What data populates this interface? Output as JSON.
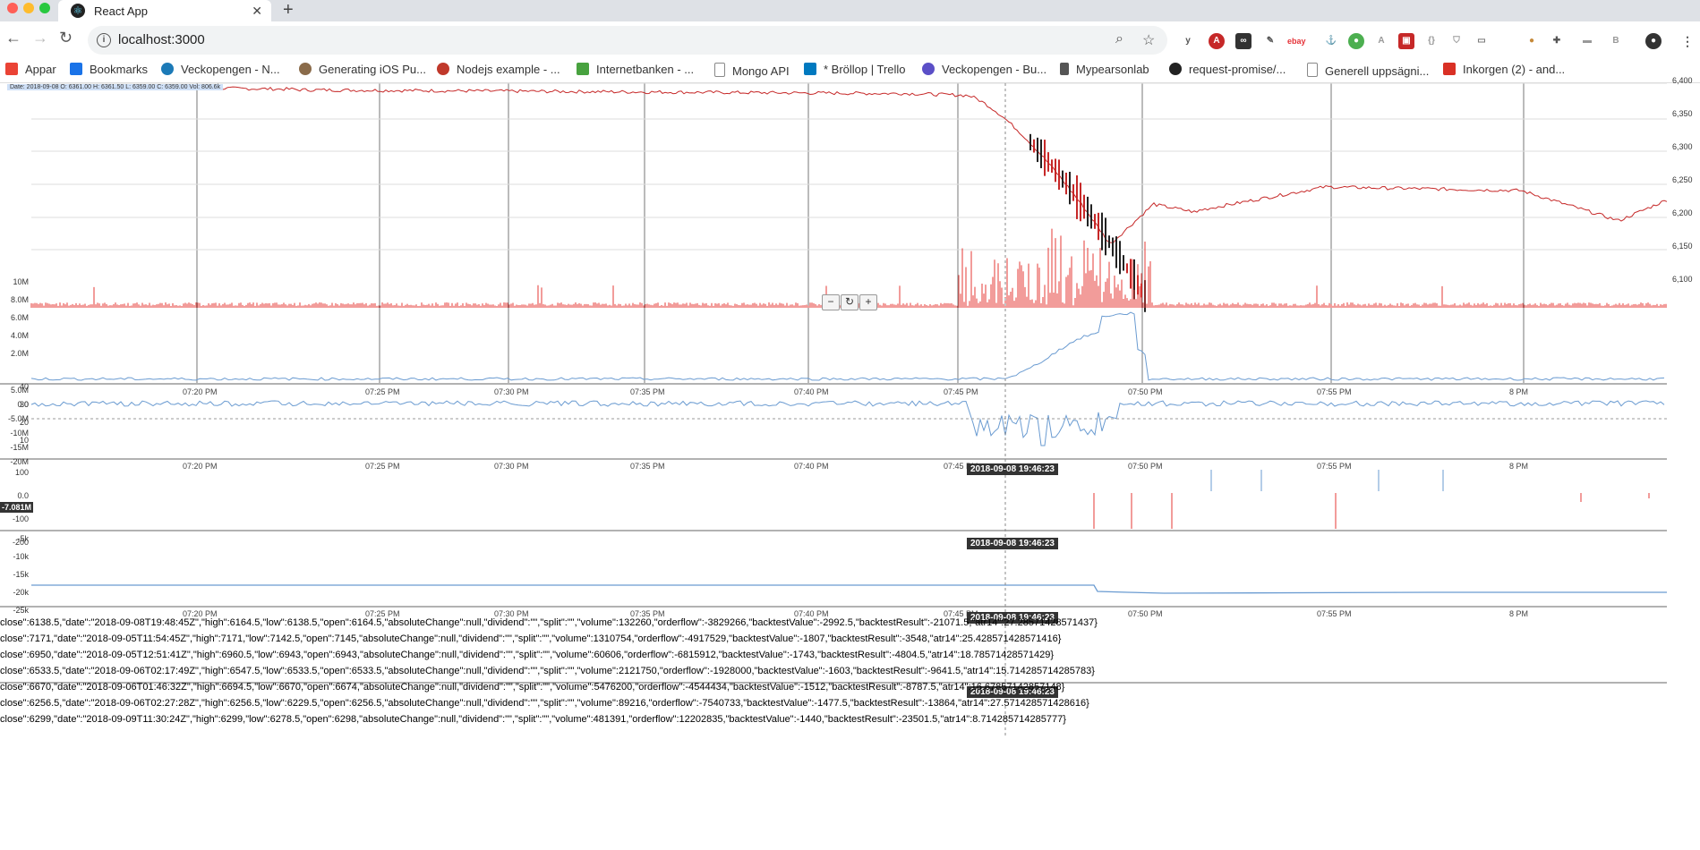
{
  "browser": {
    "tab_title": "React App",
    "url": "localhost:3000",
    "bookmarks": [
      {
        "label": "Appar",
        "icon": "apps-grid-icon",
        "color": "#ea4335"
      },
      {
        "label": "Bookmarks",
        "icon": "star-icon",
        "color": "#1a73e8"
      },
      {
        "label": "Veckopengen - N...",
        "icon": "veckopengen-icon",
        "color": "#1c7ab7"
      },
      {
        "label": "Generating iOS Pu...",
        "icon": "avatar-icon",
        "color": "#8a6b4a"
      },
      {
        "label": "Nodejs example - ...",
        "icon": "nodejs-icon",
        "color": "#c0392b"
      },
      {
        "label": "Internetbanken - ...",
        "icon": "bank-icon",
        "color": "#48a23f"
      },
      {
        "label": "Mongo API",
        "icon": "page-icon",
        "color": "#888888"
      },
      {
        "label": "* Bröllop | Trello",
        "icon": "trello-icon",
        "color": "#0079bf"
      },
      {
        "label": "Veckopengen - Bu...",
        "icon": "veckopengen-icon",
        "color": "#5b4fc7"
      },
      {
        "label": "Mypearsonlab",
        "icon": "page-icon",
        "color": "#555555"
      },
      {
        "label": "request-promise/...",
        "icon": "github-icon",
        "color": "#222222"
      },
      {
        "label": "Generell uppsägni...",
        "icon": "page-icon",
        "color": "#888888"
      },
      {
        "label": "Inkorgen (2) - and...",
        "icon": "gmail-icon",
        "color": "#d93025"
      }
    ]
  },
  "status_bar": "Date: 2018-09-08 O: 6361.00 H: 6361.50 L: 6359.00 C: 6359.00 Vol: 806.6k",
  "price_axis": [
    "6,400",
    "6,350",
    "6,300",
    "6,250",
    "6,200",
    "6,150",
    "6,100"
  ],
  "volume_axis": [
    "10M",
    "8.0M",
    "6.0M",
    "4.0M",
    "2.0M"
  ],
  "atr_axis": [
    "40",
    "30",
    "20",
    "10"
  ],
  "orderflow_axis": [
    "5.0M",
    "0.0",
    "-5.0M",
    "-10M",
    "-15M",
    "-20M"
  ],
  "orderflow_marker": "-7.081M",
  "backtest_axis": [
    "100",
    "0.0",
    "-100",
    "-200"
  ],
  "result_axis": [
    "-5k",
    "-10k",
    "-15k",
    "-20k",
    "-25k"
  ],
  "time_ticks": [
    "07:20 PM",
    "07:25 PM",
    "07:30 PM",
    "07:35 PM",
    "07:40 PM",
    "07:45 PM",
    "07:50 PM",
    "07:55 PM",
    "8 PM"
  ],
  "cursor_date": "2018-09-08 19:46:23",
  "zoom_controls": {
    "minus": "−",
    "reset": "↻",
    "plus": "+"
  },
  "json_lines": [
    "close\":6138.5,\"date\":\"2018-09-08T19:48:45Z\",\"high\":6164.5,\"low\":6138.5,\"open\":6164.5,\"absoluteChange\":null,\"dividend\":\"\",\"split\":\"\",\"volume\":132260,\"orderflow\":-3829266,\"backtestValue\":-2992.5,\"backtestResult\":-21071.5,\"atr14\":27.28571428571437}",
    "close\":7171,\"date\":\"2018-09-05T11:54:45Z\",\"high\":7171,\"low\":7142.5,\"open\":7145,\"absoluteChange\":null,\"dividend\":\"\",\"split\":\"\",\"volume\":1310754,\"orderflow\":-4917529,\"backtestValue\":-1807,\"backtestResult\":-3548,\"atr14\":25.428571428571416}",
    "close\":6950,\"date\":\"2018-09-05T12:51:41Z\",\"high\":6960.5,\"low\":6943,\"open\":6943,\"absoluteChange\":null,\"dividend\":\"\",\"split\":\"\",\"volume\":60606,\"orderflow\":-6815912,\"backtestValue\":-1743,\"backtestResult\":-4804.5,\"atr14\":18.78571428571429}",
    "close\":6533.5,\"date\":\"2018-09-06T02:17:49Z\",\"high\":6547.5,\"low\":6533.5,\"open\":6533.5,\"absoluteChange\":null,\"dividend\":\"\",\"split\":\"\",\"volume\":2121750,\"orderflow\":-1928000,\"backtestValue\":-1603,\"backtestResult\":-9641.5,\"atr14\":15.714285714285783}",
    "close\":6670,\"date\":\"2018-09-06T01:46:32Z\",\"high\":6694.5,\"low\":6670,\"open\":6674,\"absoluteChange\":null,\"dividend\":\"\",\"split\":\"\",\"volume\":5476200,\"orderflow\":-4544434,\"backtestValue\":-1512,\"backtestResult\":-8787.5,\"atr14\":16.67857142857148}",
    "close\":6256.5,\"date\":\"2018-09-06T02:27:28Z\",\"high\":6256.5,\"low\":6229.5,\"open\":6256.5,\"absoluteChange\":null,\"dividend\":\"\",\"split\":\"\",\"volume\":89216,\"orderflow\":-7540733,\"backtestValue\":-1477.5,\"backtestResult\":-13864,\"atr14\":27.571428571428616}",
    "close\":6299,\"date\":\"2018-09-09T11:30:24Z\",\"high\":6299,\"low\":6278.5,\"open\":6298,\"absoluteChange\":null,\"dividend\":\"\",\"split\":\"\",\"volume\":481391,\"orderflow\":12202835,\"backtestValue\":-1440,\"backtestResult\":-23501.5,\"atr14\":8.714285714285777}"
  ],
  "colors": {
    "price_up": "#2e7d32",
    "price_down": "#c62828",
    "volume": "#e53935",
    "line": "#6a9bd1"
  }
}
